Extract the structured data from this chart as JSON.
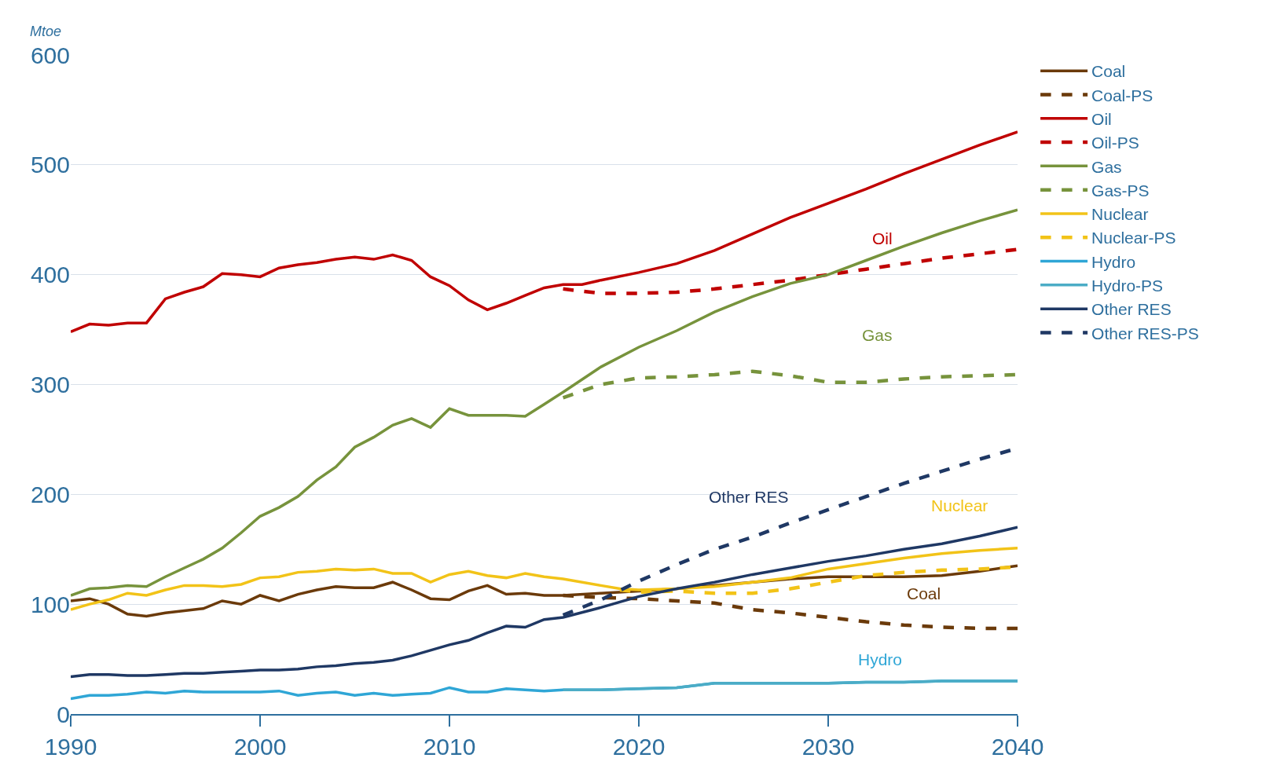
{
  "chart_data": {
    "type": "line",
    "ylabel": "Mtoe",
    "xlim": [
      1990,
      2040
    ],
    "ylim": [
      0,
      600
    ],
    "xticks": [
      1990,
      2000,
      2010,
      2020,
      2030,
      2040
    ],
    "yticks": [
      0,
      100,
      200,
      300,
      400,
      500,
      600
    ],
    "grid": "y",
    "legend": "right",
    "marker": "none",
    "series": [
      {
        "name": "Coal",
        "color": "#6b3a0a",
        "line_style": "solid",
        "x": [
          1990,
          1991,
          1992,
          1993,
          1994,
          1995,
          1996,
          1997,
          1998,
          1999,
          2000,
          2001,
          2002,
          2003,
          2004,
          2005,
          2006,
          2007,
          2008,
          2009,
          2010,
          2011,
          2012,
          2013,
          2014,
          2015,
          2016,
          2018,
          2020,
          2022,
          2024,
          2026,
          2028,
          2030,
          2032,
          2034,
          2036,
          2038,
          2040
        ],
        "values": [
          103,
          105,
          100,
          91,
          89,
          92,
          94,
          96,
          103,
          100,
          108,
          103,
          109,
          113,
          116,
          115,
          115,
          120,
          113,
          105,
          104,
          112,
          117,
          109,
          110,
          108,
          108,
          110,
          112,
          114,
          117,
          120,
          123,
          125,
          125,
          125,
          126,
          130,
          135
        ]
      },
      {
        "name": "Coal-PS",
        "color": "#6b3a0a",
        "line_style": "dashed",
        "x": [
          2016,
          2018,
          2020,
          2022,
          2024,
          2026,
          2028,
          2030,
          2032,
          2034,
          2036,
          2038,
          2040
        ],
        "values": [
          108,
          106,
          105,
          103,
          101,
          95,
          92,
          88,
          84,
          81,
          79,
          78,
          78
        ]
      },
      {
        "name": "Oil",
        "color": "#c00000",
        "line_style": "solid",
        "x": [
          1990,
          1991,
          1992,
          1993,
          1994,
          1995,
          1996,
          1997,
          1998,
          1999,
          2000,
          2001,
          2002,
          2003,
          2004,
          2005,
          2006,
          2007,
          2008,
          2009,
          2010,
          2011,
          2012,
          2013,
          2014,
          2015,
          2016,
          2017,
          2018,
          2020,
          2022,
          2024,
          2026,
          2028,
          2030,
          2032,
          2034,
          2036,
          2038,
          2040
        ],
        "values": [
          348,
          355,
          354,
          356,
          356,
          378,
          384,
          389,
          401,
          400,
          398,
          406,
          409,
          411,
          414,
          416,
          414,
          418,
          413,
          398,
          390,
          377,
          368,
          374,
          381,
          388,
          391,
          391,
          395,
          402,
          410,
          422,
          437,
          452,
          465,
          478,
          492,
          505,
          518,
          530
        ]
      },
      {
        "name": "Oil-PS",
        "color": "#c00000",
        "line_style": "dashed",
        "x": [
          2016,
          2018,
          2020,
          2022,
          2024,
          2026,
          2028,
          2030,
          2032,
          2034,
          2036,
          2038,
          2040
        ],
        "values": [
          387,
          383,
          383,
          384,
          387,
          391,
          395,
          400,
          405,
          410,
          415,
          419,
          423
        ]
      },
      {
        "name": "Gas",
        "color": "#77933c",
        "line_style": "solid",
        "x": [
          1990,
          1991,
          1992,
          1993,
          1994,
          1995,
          1996,
          1997,
          1998,
          1999,
          2000,
          2001,
          2002,
          2003,
          2004,
          2005,
          2006,
          2007,
          2008,
          2009,
          2010,
          2011,
          2012,
          2013,
          2014,
          2015,
          2016,
          2018,
          2020,
          2022,
          2024,
          2026,
          2028,
          2030,
          2032,
          2034,
          2036,
          2038,
          2040
        ],
        "values": [
          108,
          114,
          115,
          117,
          116,
          125,
          133,
          141,
          151,
          165,
          180,
          188,
          198,
          213,
          225,
          243,
          252,
          263,
          269,
          261,
          278,
          272,
          272,
          272,
          271,
          282,
          293,
          316,
          334,
          349,
          366,
          380,
          392,
          400,
          413,
          426,
          438,
          449,
          459
        ]
      },
      {
        "name": "Gas-PS",
        "color": "#77933c",
        "line_style": "dashed",
        "x": [
          2016,
          2018,
          2020,
          2022,
          2024,
          2026,
          2028,
          2030,
          2032,
          2034,
          2036,
          2038,
          2040
        ],
        "values": [
          288,
          300,
          306,
          307,
          309,
          312,
          308,
          302,
          302,
          305,
          307,
          308,
          309
        ]
      },
      {
        "name": "Nuclear",
        "color": "#f2c318",
        "line_style": "solid",
        "x": [
          1990,
          1991,
          1992,
          1993,
          1994,
          1995,
          1996,
          1997,
          1998,
          1999,
          2000,
          2001,
          2002,
          2003,
          2004,
          2005,
          2006,
          2007,
          2008,
          2009,
          2010,
          2011,
          2012,
          2013,
          2014,
          2015,
          2016,
          2018,
          2019,
          2020,
          2022,
          2024,
          2026,
          2028,
          2030,
          2032,
          2034,
          2036,
          2038,
          2040
        ],
        "values": [
          95,
          100,
          104,
          110,
          108,
          113,
          117,
          117,
          116,
          118,
          124,
          125,
          129,
          130,
          132,
          131,
          132,
          128,
          128,
          120,
          127,
          130,
          126,
          124,
          128,
          125,
          123,
          117,
          114,
          113,
          114,
          116,
          120,
          124,
          132,
          137,
          142,
          146,
          149,
          151
        ]
      },
      {
        "name": "Nuclear-PS",
        "color": "#f2c318",
        "line_style": "dashed",
        "x": [
          2019,
          2020,
          2022,
          2024,
          2026,
          2028,
          2030,
          2032,
          2034,
          2036,
          2038,
          2040
        ],
        "values": [
          113,
          111,
          112,
          110,
          110,
          114,
          120,
          126,
          129,
          131,
          132,
          134
        ]
      },
      {
        "name": "Hydro",
        "color": "#2fa6d6",
        "line_style": "solid",
        "x": [
          1990,
          1991,
          1992,
          1993,
          1994,
          1995,
          1996,
          1997,
          1998,
          1999,
          2000,
          2001,
          2002,
          2003,
          2004,
          2005,
          2006,
          2007,
          2008,
          2009,
          2010,
          2011,
          2012,
          2013,
          2014,
          2015,
          2016,
          2018,
          2020,
          2022,
          2024,
          2026,
          2028,
          2030,
          2032,
          2034,
          2036,
          2038,
          2040
        ],
        "values": [
          14,
          17,
          17,
          18,
          20,
          19,
          21,
          20,
          20,
          20,
          20,
          21,
          17,
          19,
          20,
          17,
          19,
          17,
          18,
          19,
          24,
          20,
          20,
          23,
          22,
          21,
          22,
          22,
          23,
          24,
          28,
          28,
          28,
          28,
          29,
          29,
          30,
          30,
          30
        ]
      },
      {
        "name": "Hydro-PS",
        "color": "#4bacc6",
        "line_style": "solid",
        "x": [
          2016,
          2018,
          2020,
          2022,
          2024,
          2026,
          2028,
          2030,
          2032,
          2034,
          2036,
          2038,
          2040
        ],
        "values": [
          22,
          22,
          23,
          24,
          28,
          28,
          28,
          28,
          29,
          29,
          30,
          30,
          30
        ]
      },
      {
        "name": "Other RES",
        "color": "#1f3864",
        "line_style": "solid",
        "x": [
          1990,
          1991,
          1992,
          1993,
          1994,
          1995,
          1996,
          1997,
          1998,
          1999,
          2000,
          2001,
          2002,
          2003,
          2004,
          2005,
          2006,
          2007,
          2008,
          2009,
          2010,
          2011,
          2012,
          2013,
          2014,
          2015,
          2016,
          2018,
          2020,
          2022,
          2024,
          2026,
          2028,
          2030,
          2032,
          2034,
          2036,
          2038,
          2040
        ],
        "values": [
          34,
          36,
          36,
          35,
          35,
          36,
          37,
          37,
          38,
          39,
          40,
          40,
          41,
          43,
          44,
          46,
          47,
          49,
          53,
          58,
          63,
          67,
          74,
          80,
          79,
          86,
          88,
          97,
          107,
          114,
          120,
          127,
          133,
          139,
          144,
          150,
          155,
          162,
          170
        ]
      },
      {
        "name": "Other RES-PS",
        "color": "#1f3864",
        "line_style": "dashed",
        "x": [
          2016,
          2018,
          2020,
          2022,
          2024,
          2026,
          2028,
          2030,
          2032,
          2034,
          2036,
          2038,
          2040
        ],
        "values": [
          90,
          104,
          121,
          136,
          150,
          161,
          174,
          186,
          198,
          210,
          221,
          232,
          242
        ]
      }
    ],
    "annotations": [
      "Oil",
      "Gas",
      "Other RES",
      "Nuclear",
      "Coal",
      "Hydro"
    ]
  }
}
